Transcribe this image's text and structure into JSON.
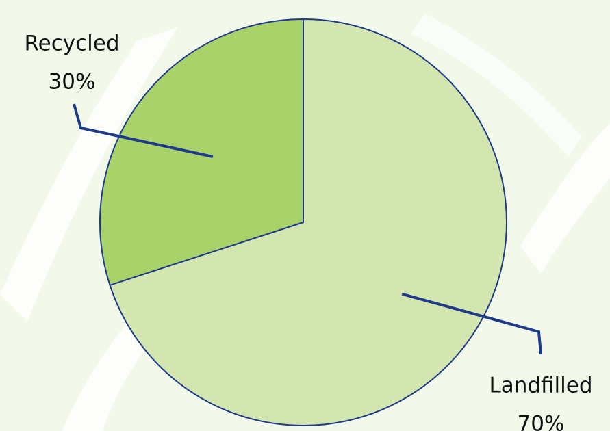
{
  "chart_data": {
    "type": "pie",
    "categories": [
      "Landfilled",
      "Recycled"
    ],
    "values": [
      70,
      30
    ],
    "value_labels": [
      "70%",
      "30%"
    ],
    "colors": [
      "#d3e6b0",
      "#a9d26a"
    ],
    "edge_color": "#1f3a8a"
  }
}
